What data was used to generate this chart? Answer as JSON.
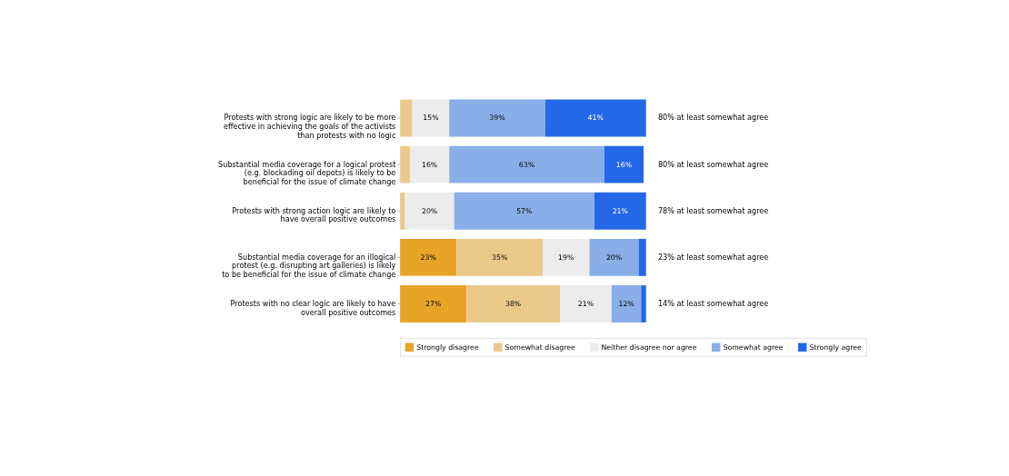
{
  "chart_data": {
    "type": "bar",
    "orientation": "horizontal",
    "stacked": true,
    "legend": "bottom",
    "tick_labels": false,
    "categories": [
      "Protests with strong logic are likely to be more effective in achieving the goals of the activists than protests with no logic",
      "Substantial media coverage for a logical protest (e.g. blockading oil depots) is likely to be beneficial for the issue of climate change",
      "Protests with strong action logic are likely to have overall positive outcomes",
      "Substantial media coverage for an illogical protest (e.g. disrupting art galleries) is likely to be beneficial for the issue of climate change",
      "Protests with no clear logic are likely to have overall positive outcomes"
    ],
    "series": [
      {
        "name": "Strongly disagree",
        "color": "#e8a427",
        "values": [
          0,
          0,
          0,
          23,
          27
        ],
        "value_labels": [
          null,
          null,
          null,
          "23%",
          "27%"
        ]
      },
      {
        "name": "Somewhat disagree",
        "color": "#ebc98a",
        "values": [
          5,
          4,
          2,
          35,
          38
        ],
        "value_labels": [
          null,
          null,
          null,
          "35%",
          "38%"
        ]
      },
      {
        "name": "Neither disagree nor agree",
        "color": "#ececec",
        "values": [
          15,
          16,
          20,
          19,
          21
        ],
        "value_labels": [
          "15%",
          "16%",
          "20%",
          "19%",
          "21%"
        ]
      },
      {
        "name": "Somewhat agree",
        "color": "#8aaee8",
        "values": [
          39,
          63,
          57,
          20,
          12
        ],
        "value_labels": [
          "39%",
          "63%",
          "57%",
          "20%",
          "12%"
        ]
      },
      {
        "name": "Strongly agree",
        "color": "#2468e8",
        "values": [
          41,
          16,
          21,
          3,
          2
        ],
        "value_labels": [
          "41%",
          "16%",
          "21%",
          null,
          null
        ]
      }
    ],
    "annotations": [
      "80% at least somewhat agree",
      "80% at least somewhat agree",
      "78% at least somewhat agree",
      "23% at least somewhat agree",
      "14% at least somewhat agree"
    ]
  }
}
